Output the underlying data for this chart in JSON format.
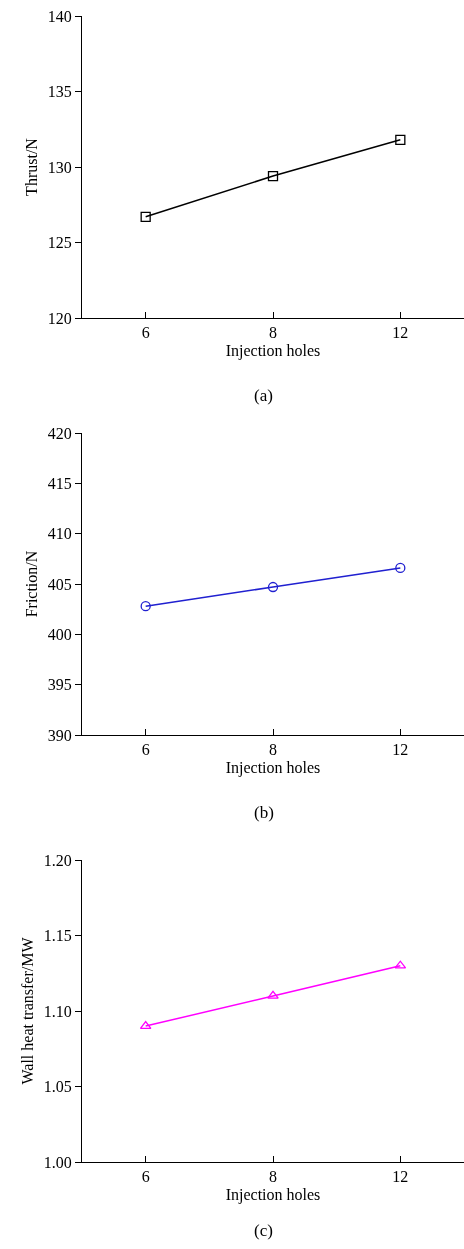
{
  "chart_data": [
    {
      "type": "line",
      "title": "(a)",
      "xlabel": "Injection holes",
      "ylabel": "Thrust/N",
      "categories": [
        "6",
        "8",
        "12"
      ],
      "series": [
        {
          "color": "#000000",
          "values": [
            126.7,
            129.4,
            131.8
          ]
        }
      ],
      "ylim": [
        120,
        140
      ],
      "yticks": [
        120,
        125,
        130,
        135,
        140
      ],
      "grid": false,
      "marker": "square",
      "line_style": "solid"
    },
    {
      "type": "line",
      "title": "(b)",
      "xlabel": "Injection holes",
      "ylabel": "Friction/N",
      "categories": [
        "6",
        "8",
        "12"
      ],
      "series": [
        {
          "color": "#2020d0",
          "values": [
            402.8,
            404.7,
            406.6
          ]
        }
      ],
      "ylim": [
        390,
        420
      ],
      "yticks": [
        390,
        395,
        400,
        405,
        410,
        415,
        420
      ],
      "grid": false,
      "marker": "circle",
      "line_style": "solid"
    },
    {
      "type": "line",
      "title": "(c)",
      "xlabel": "Injection holes",
      "ylabel": "Wall heat transfer/MW",
      "categories": [
        "6",
        "8",
        "12"
      ],
      "series": [
        {
          "color": "#ff00ff",
          "values": [
            1.09,
            1.11,
            1.13
          ]
        }
      ],
      "ylim": [
        1.0,
        1.2
      ],
      "yticks": [
        {
          "value": 1.0,
          "label": "1.00"
        },
        {
          "value": 1.05,
          "label": "1.05"
        },
        {
          "value": 1.1,
          "label": "1.10"
        },
        {
          "value": 1.15,
          "label": "1.15"
        },
        {
          "value": 1.2,
          "label": "1.20"
        }
      ],
      "grid": false,
      "marker": "triangle",
      "line_style": "solid"
    }
  ]
}
